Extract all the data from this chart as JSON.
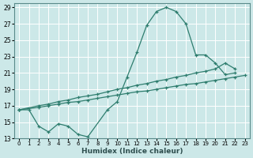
{
  "xlabel": "Humidex (Indice chaleur)",
  "bg_color": "#cce8e8",
  "grid_color": "#ffffff",
  "line_color": "#2e7d6e",
  "xlim": [
    -0.5,
    23.5
  ],
  "ylim": [
    13,
    29.5
  ],
  "xticks": [
    0,
    1,
    2,
    3,
    4,
    5,
    6,
    7,
    8,
    9,
    10,
    11,
    12,
    13,
    14,
    15,
    16,
    17,
    18,
    19,
    20,
    21,
    22,
    23
  ],
  "yticks": [
    13,
    15,
    17,
    19,
    21,
    23,
    25,
    27,
    29
  ],
  "curve_x": [
    0,
    1,
    2,
    3,
    4,
    5,
    6,
    7,
    9,
    10,
    11,
    12,
    13,
    14,
    15,
    16,
    17,
    18,
    19,
    20,
    21,
    22
  ],
  "curve_y": [
    16.5,
    16.5,
    14.5,
    13.8,
    14.8,
    14.5,
    13.5,
    13.2,
    16.5,
    17.5,
    20.5,
    23.5,
    26.8,
    28.5,
    29.0,
    28.5,
    27.0,
    23.2,
    23.2,
    22.2,
    20.8,
    21.0
  ],
  "line1_x": [
    0,
    2,
    3,
    4,
    5,
    6,
    7,
    8,
    9,
    10,
    11,
    12,
    13,
    14,
    15,
    16,
    17,
    18,
    19,
    20,
    21,
    22
  ],
  "line1_y": [
    16.5,
    17.0,
    17.2,
    17.5,
    17.7,
    18.0,
    18.2,
    18.4,
    18.7,
    19.0,
    19.2,
    19.5,
    19.7,
    20.0,
    20.2,
    20.5,
    20.7,
    21.0,
    21.2,
    21.5,
    22.2,
    21.5
  ],
  "line2_x": [
    0,
    2,
    3,
    4,
    5,
    6,
    7,
    8,
    9,
    10,
    11,
    12,
    13,
    14,
    15,
    16,
    17,
    18,
    19,
    20,
    21,
    22,
    23
  ],
  "line2_y": [
    16.5,
    16.8,
    17.0,
    17.2,
    17.4,
    17.5,
    17.7,
    17.9,
    18.1,
    18.3,
    18.5,
    18.7,
    18.8,
    19.0,
    19.2,
    19.4,
    19.6,
    19.7,
    19.9,
    20.1,
    20.3,
    20.5,
    20.7
  ]
}
